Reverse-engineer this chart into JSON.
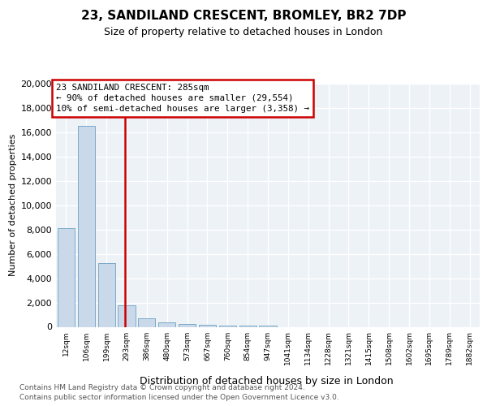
{
  "title": "23, SANDILAND CRESCENT, BROMLEY, BR2 7DP",
  "subtitle": "Size of property relative to detached houses in London",
  "xlabel": "Distribution of detached houses by size in London",
  "ylabel": "Number of detached properties",
  "bar_color": "#c9d9ea",
  "bar_edge_color": "#7aaac8",
  "bg_color": "#edf2f7",
  "grid_color": "#ffffff",
  "marker_line_color": "#cc0000",
  "annotation_line1": "23 SANDILAND CRESCENT: 285sqm",
  "annotation_line2": "← 90% of detached houses are smaller (29,554)",
  "annotation_line3": "10% of semi-detached houses are larger (3,358) →",
  "footnote1": "Contains HM Land Registry data © Crown copyright and database right 2024.",
  "footnote2": "Contains public sector information licensed under the Open Government Licence v3.0.",
  "categories": [
    "12sqm",
    "106sqm",
    "199sqm",
    "293sqm",
    "386sqm",
    "480sqm",
    "573sqm",
    "667sqm",
    "760sqm",
    "854sqm",
    "947sqm",
    "1041sqm",
    "1134sqm",
    "1228sqm",
    "1321sqm",
    "1415sqm",
    "1508sqm",
    "1602sqm",
    "1695sqm",
    "1789sqm",
    "1882sqm"
  ],
  "values": [
    8100,
    16500,
    5250,
    1800,
    680,
    350,
    230,
    160,
    130,
    100,
    80,
    0,
    0,
    0,
    0,
    0,
    0,
    0,
    0,
    0,
    0
  ],
  "ylim": [
    0,
    20000
  ],
  "yticks": [
    0,
    2000,
    4000,
    6000,
    8000,
    10000,
    12000,
    14000,
    16000,
    18000,
    20000
  ],
  "marker_bar_index": 2.93,
  "title_fontsize": 11,
  "subtitle_fontsize": 9,
  "ylabel_fontsize": 8,
  "xlabel_fontsize": 9,
  "ytick_fontsize": 8,
  "xtick_fontsize": 6.5
}
